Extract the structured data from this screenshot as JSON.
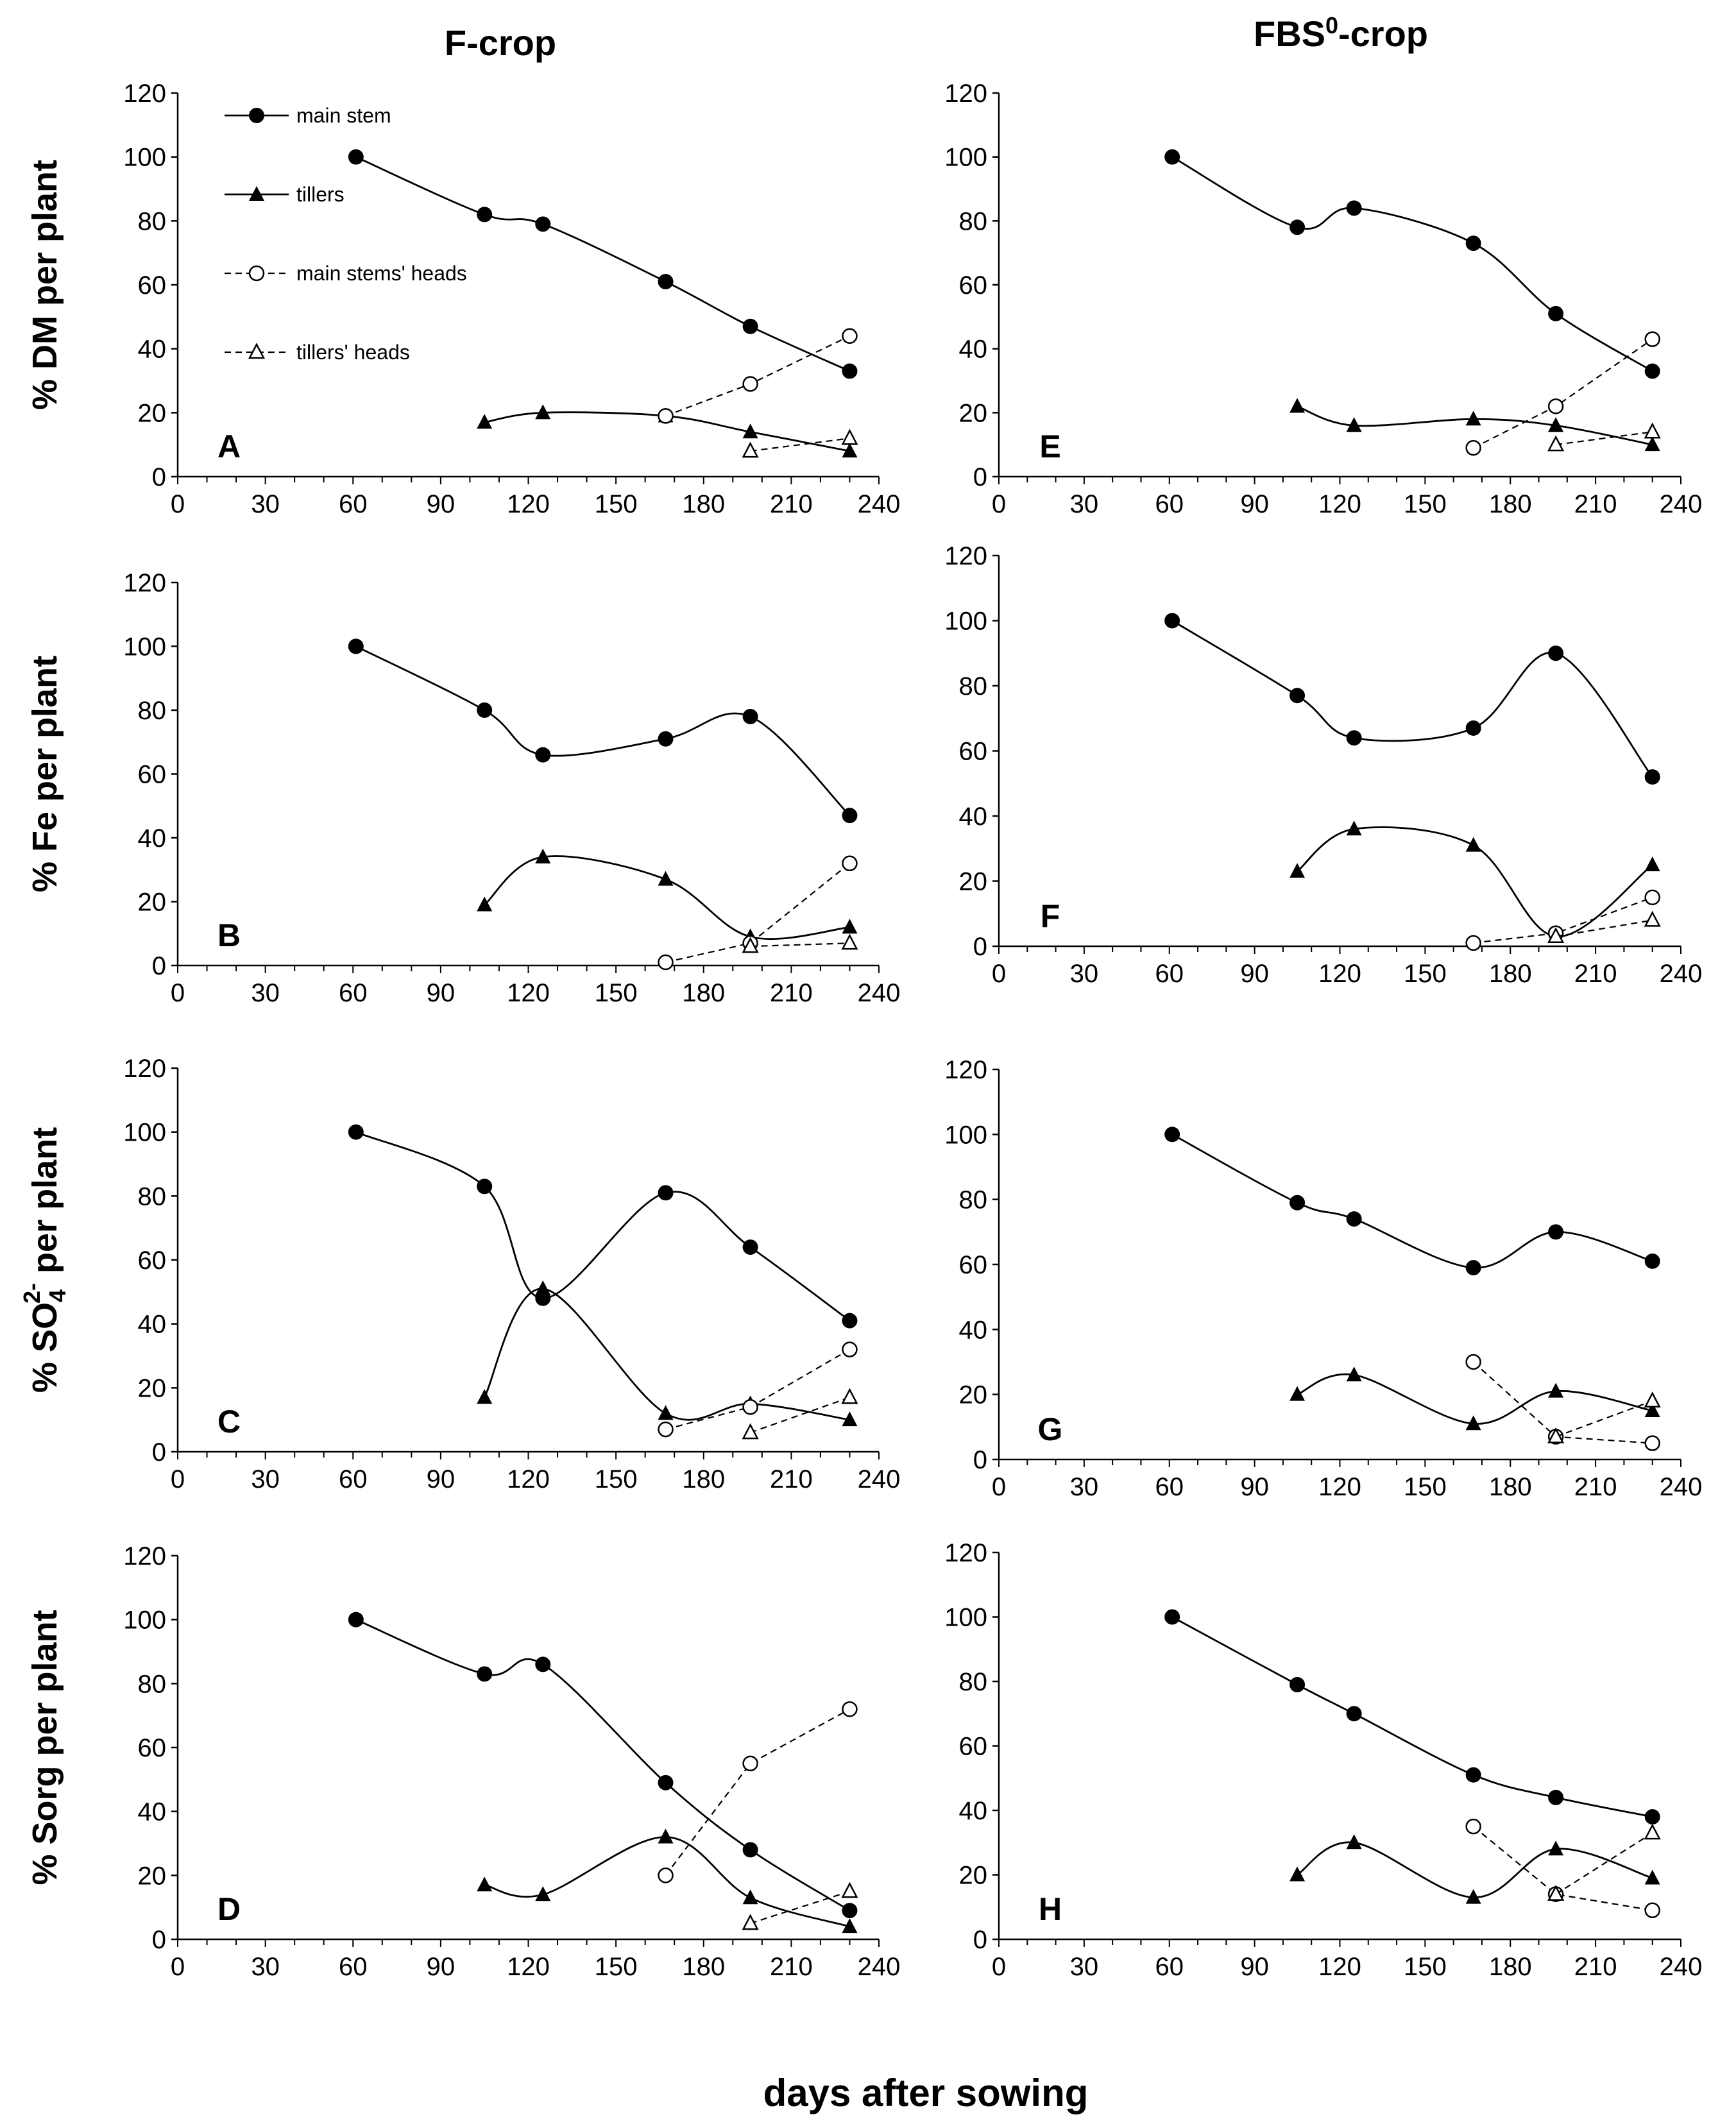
{
  "figure": {
    "column_titles": [
      "F-crop",
      "FBS",
      "0",
      "-crop"
    ],
    "x_label": "days after sowing"
  },
  "legend": [
    {
      "label": "main stem",
      "marker": "filled-circle",
      "line": "solid"
    },
    {
      "label": "tillers",
      "marker": "filled-triangle",
      "line": "solid"
    },
    {
      "label": "main stems' heads",
      "marker": "open-circle",
      "line": "dashed"
    },
    {
      "label": "tillers' heads",
      "marker": "open-triangle",
      "line": "dashed"
    }
  ],
  "y_labels": {
    "dm": "% DM per plant",
    "fe": "% Fe per plant",
    "so4": [
      "% SO",
      "4",
      "2-",
      " per plant"
    ],
    "sorg": "% Sorg per plant"
  },
  "chart_data": [
    {
      "panel": "A",
      "type": "line",
      "title": "F-crop",
      "xlabel": "days after sowing",
      "ylabel": "% DM per plant",
      "xlim": [
        0,
        240
      ],
      "ylim": [
        0,
        120
      ],
      "x_ticks": [
        0,
        30,
        60,
        90,
        120,
        150,
        180,
        210,
        240
      ],
      "y_ticks": [
        0,
        20,
        40,
        60,
        80,
        100,
        120
      ],
      "series": [
        {
          "name": "main stem",
          "x": [
            61,
            105,
            125,
            167,
            196,
            230
          ],
          "values": [
            100,
            82,
            79,
            61,
            47,
            33
          ]
        },
        {
          "name": "tillers",
          "x": [
            105,
            125,
            167,
            196,
            230
          ],
          "values": [
            17,
            20,
            19,
            14,
            8
          ]
        },
        {
          "name": "main stems' heads",
          "x": [
            167,
            196,
            230
          ],
          "values": [
            19,
            29,
            44
          ]
        },
        {
          "name": "tillers' heads",
          "x": [
            196,
            230
          ],
          "values": [
            8,
            12
          ]
        }
      ]
    },
    {
      "panel": "B",
      "type": "line",
      "title": "F-crop",
      "xlabel": "days after sowing",
      "ylabel": "% Fe per plant",
      "xlim": [
        0,
        240
      ],
      "ylim": [
        0,
        120
      ],
      "x_ticks": [
        0,
        30,
        60,
        90,
        120,
        150,
        180,
        210,
        240
      ],
      "y_ticks": [
        0,
        20,
        40,
        60,
        80,
        100,
        120
      ],
      "series": [
        {
          "name": "main stem",
          "x": [
            61,
            105,
            125,
            167,
            196,
            230
          ],
          "values": [
            100,
            80,
            66,
            71,
            78,
            47
          ]
        },
        {
          "name": "tillers",
          "x": [
            105,
            125,
            167,
            196,
            230
          ],
          "values": [
            19,
            34,
            27,
            9,
            12
          ]
        },
        {
          "name": "main stems' heads",
          "x": [
            167,
            196,
            230
          ],
          "values": [
            1,
            7,
            32
          ]
        },
        {
          "name": "tillers' heads",
          "x": [
            196,
            230
          ],
          "values": [
            6,
            7
          ]
        }
      ]
    },
    {
      "panel": "C",
      "type": "line",
      "title": "F-crop",
      "xlabel": "days after sowing",
      "ylabel": "% SO4 2- per plant",
      "xlim": [
        0,
        240
      ],
      "ylim": [
        0,
        120
      ],
      "x_ticks": [
        0,
        30,
        60,
        90,
        120,
        150,
        180,
        210,
        240
      ],
      "y_ticks": [
        0,
        20,
        40,
        60,
        80,
        100,
        120
      ],
      "series": [
        {
          "name": "main stem",
          "x": [
            61,
            105,
            125,
            167,
            196,
            230
          ],
          "values": [
            100,
            83,
            48,
            81,
            64,
            41
          ]
        },
        {
          "name": "tillers",
          "x": [
            105,
            125,
            167,
            196,
            230
          ],
          "values": [
            17,
            51,
            12,
            15,
            10
          ]
        },
        {
          "name": "main stems' heads",
          "x": [
            167,
            196,
            230
          ],
          "values": [
            7,
            14,
            32
          ]
        },
        {
          "name": "tillers' heads",
          "x": [
            196,
            230
          ],
          "values": [
            6,
            17
          ]
        }
      ]
    },
    {
      "panel": "D",
      "type": "line",
      "title": "F-crop",
      "xlabel": "days after sowing",
      "ylabel": "% Sorg per plant",
      "xlim": [
        0,
        240
      ],
      "ylim": [
        0,
        120
      ],
      "x_ticks": [
        0,
        30,
        60,
        90,
        120,
        150,
        180,
        210,
        240
      ],
      "y_ticks": [
        0,
        20,
        40,
        60,
        80,
        100,
        120
      ],
      "series": [
        {
          "name": "main stem",
          "x": [
            61,
            105,
            125,
            167,
            196,
            230
          ],
          "values": [
            100,
            83,
            86,
            49,
            28,
            9
          ]
        },
        {
          "name": "tillers",
          "x": [
            105,
            125,
            167,
            196,
            230
          ],
          "values": [
            17,
            14,
            32,
            13,
            4
          ]
        },
        {
          "name": "main stems' heads",
          "x": [
            167,
            196,
            230
          ],
          "values": [
            20,
            55,
            72
          ]
        },
        {
          "name": "tillers' heads",
          "x": [
            196,
            230
          ],
          "values": [
            5,
            15
          ]
        }
      ]
    },
    {
      "panel": "E",
      "type": "line",
      "title": "FBS0-crop",
      "xlabel": "days after sowing",
      "ylabel": "% DM per plant",
      "xlim": [
        0,
        240
      ],
      "ylim": [
        0,
        120
      ],
      "x_ticks": [
        0,
        30,
        60,
        90,
        120,
        150,
        180,
        210,
        240
      ],
      "y_ticks": [
        0,
        20,
        40,
        60,
        80,
        100,
        120
      ],
      "series": [
        {
          "name": "main stem",
          "x": [
            61,
            105,
            125,
            167,
            196,
            230
          ],
          "values": [
            100,
            78,
            84,
            73,
            51,
            33
          ]
        },
        {
          "name": "tillers",
          "x": [
            105,
            125,
            167,
            196,
            230
          ],
          "values": [
            22,
            16,
            18,
            16,
            10
          ]
        },
        {
          "name": "main stems' heads",
          "x": [
            167,
            196,
            230
          ],
          "values": [
            9,
            22,
            43
          ]
        },
        {
          "name": "tillers' heads",
          "x": [
            196,
            230
          ],
          "values": [
            10,
            14
          ]
        }
      ]
    },
    {
      "panel": "F",
      "type": "line",
      "title": "FBS0-crop",
      "xlabel": "days after sowing",
      "ylabel": "% Fe per plant",
      "xlim": [
        0,
        240
      ],
      "ylim": [
        0,
        120
      ],
      "x_ticks": [
        0,
        30,
        60,
        90,
        120,
        150,
        180,
        210,
        240
      ],
      "y_ticks": [
        0,
        20,
        40,
        60,
        80,
        100,
        120
      ],
      "series": [
        {
          "name": "main stem",
          "x": [
            61,
            105,
            125,
            167,
            196,
            230
          ],
          "values": [
            100,
            77,
            64,
            67,
            90,
            52
          ]
        },
        {
          "name": "tillers",
          "x": [
            105,
            125,
            167,
            196,
            230
          ],
          "values": [
            23,
            36,
            31,
            3,
            25
          ]
        },
        {
          "name": "main stems' heads",
          "x": [
            167,
            196,
            230
          ],
          "values": [
            1,
            4,
            15
          ]
        },
        {
          "name": "tillers' heads",
          "x": [
            196,
            230
          ],
          "values": [
            3,
            8
          ]
        }
      ]
    },
    {
      "panel": "G",
      "type": "line",
      "title": "FBS0-crop",
      "xlabel": "days after sowing",
      "ylabel": "% SO4 2- per plant",
      "xlim": [
        0,
        240
      ],
      "ylim": [
        0,
        120
      ],
      "x_ticks": [
        0,
        30,
        60,
        90,
        120,
        150,
        180,
        210,
        240
      ],
      "y_ticks": [
        0,
        20,
        40,
        60,
        80,
        100,
        120
      ],
      "series": [
        {
          "name": "main stem",
          "x": [
            61,
            105,
            125,
            167,
            196,
            230
          ],
          "values": [
            100,
            79,
            74,
            59,
            70,
            61
          ]
        },
        {
          "name": "tillers",
          "x": [
            105,
            125,
            167,
            196,
            230
          ],
          "values": [
            20,
            26,
            11,
            21,
            15
          ]
        },
        {
          "name": "main stems' heads",
          "x": [
            167,
            196,
            230
          ],
          "values": [
            30,
            7,
            5
          ]
        },
        {
          "name": "tillers' heads",
          "x": [
            196,
            230
          ],
          "values": [
            7,
            18
          ]
        }
      ]
    },
    {
      "panel": "H",
      "type": "line",
      "title": "FBS0-crop",
      "xlabel": "days after sowing",
      "ylabel": "% Sorg per plant",
      "xlim": [
        0,
        240
      ],
      "ylim": [
        0,
        120
      ],
      "x_ticks": [
        0,
        30,
        60,
        90,
        120,
        150,
        180,
        210,
        240
      ],
      "y_ticks": [
        0,
        20,
        40,
        60,
        80,
        100,
        120
      ],
      "series": [
        {
          "name": "main stem",
          "x": [
            61,
            105,
            125,
            167,
            196,
            230
          ],
          "values": [
            100,
            79,
            70,
            51,
            44,
            38
          ]
        },
        {
          "name": "tillers",
          "x": [
            105,
            125,
            167,
            196,
            230
          ],
          "values": [
            20,
            30,
            13,
            28,
            19
          ]
        },
        {
          "name": "main stems' heads",
          "x": [
            167,
            196,
            230
          ],
          "values": [
            35,
            14,
            9
          ]
        },
        {
          "name": "tillers' heads",
          "x": [
            196,
            230
          ],
          "values": [
            14,
            33
          ]
        }
      ]
    }
  ]
}
